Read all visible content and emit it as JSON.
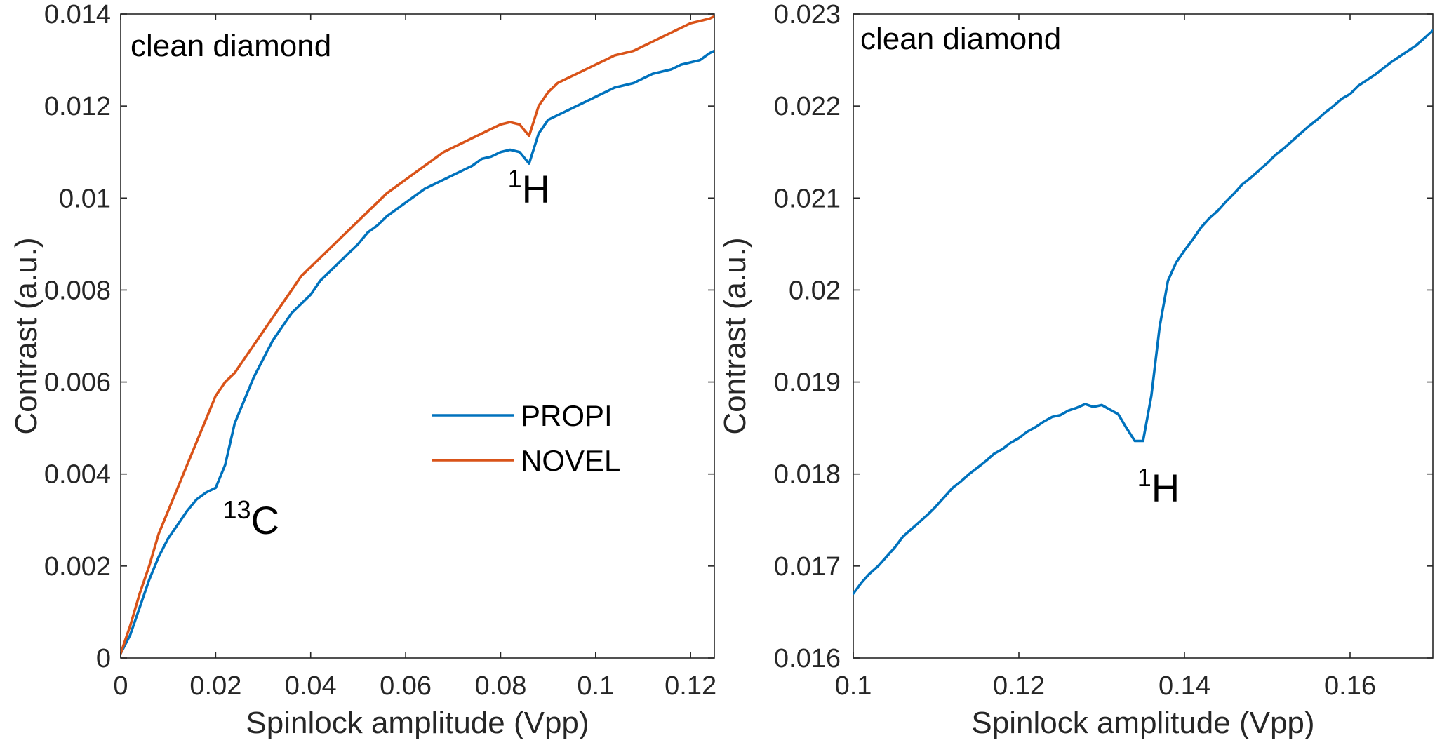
{
  "chart_data": [
    {
      "type": "line",
      "title": "clean diamond",
      "xlabel": "Spinlock amplitude (Vpp)",
      "ylabel": "Contrast (a.u.)",
      "xlim": [
        0,
        0.125
      ],
      "ylim": [
        0,
        0.014
      ],
      "xticks": [
        0,
        0.02,
        0.04,
        0.06,
        0.08,
        0.1,
        0.12
      ],
      "xtick_labels": [
        "0",
        "0.02",
        "0.04",
        "0.06",
        "0.08",
        "0.1",
        "0.12"
      ],
      "yticks": [
        0,
        0.002,
        0.004,
        0.006,
        0.008,
        0.01,
        0.012,
        0.014
      ],
      "ytick_labels": [
        "0",
        "0.002",
        "0.004",
        "0.006",
        "0.008",
        "0.01",
        "0.012",
        "0.014"
      ],
      "grid": false,
      "legend_position": "center-right",
      "series": [
        {
          "name": "PROPI",
          "color": "#0072BD",
          "x": [
            0,
            0.002,
            0.004,
            0.006,
            0.008,
            0.01,
            0.012,
            0.014,
            0.016,
            0.018,
            0.02,
            0.022,
            0.024,
            0.026,
            0.028,
            0.03,
            0.032,
            0.034,
            0.036,
            0.038,
            0.04,
            0.042,
            0.044,
            0.046,
            0.048,
            0.05,
            0.052,
            0.054,
            0.056,
            0.058,
            0.06,
            0.062,
            0.064,
            0.066,
            0.068,
            0.07,
            0.072,
            0.074,
            0.076,
            0.078,
            0.08,
            0.082,
            0.084,
            0.086,
            0.088,
            0.09,
            0.092,
            0.094,
            0.096,
            0.098,
            0.1,
            0.102,
            0.104,
            0.106,
            0.108,
            0.11,
            0.112,
            0.114,
            0.116,
            0.118,
            0.12,
            0.122,
            0.124,
            0.125
          ],
          "y": [
            0.0001,
            0.0005,
            0.0011,
            0.0017,
            0.0022,
            0.0026,
            0.0029,
            0.0032,
            0.00345,
            0.0036,
            0.0037,
            0.0042,
            0.0051,
            0.0056,
            0.0061,
            0.0065,
            0.0069,
            0.0072,
            0.0075,
            0.0077,
            0.0079,
            0.0082,
            0.0084,
            0.0086,
            0.0088,
            0.009,
            0.00925,
            0.0094,
            0.0096,
            0.00975,
            0.0099,
            0.01005,
            0.0102,
            0.0103,
            0.0104,
            0.0105,
            0.0106,
            0.0107,
            0.01085,
            0.0109,
            0.011,
            0.01105,
            0.011,
            0.01075,
            0.0114,
            0.0117,
            0.0118,
            0.0119,
            0.012,
            0.0121,
            0.0122,
            0.0123,
            0.0124,
            0.01245,
            0.0125,
            0.0126,
            0.0127,
            0.01275,
            0.0128,
            0.0129,
            0.01295,
            0.013,
            0.01315,
            0.0132
          ]
        },
        {
          "name": "NOVEL",
          "color": "#D95319",
          "x": [
            0,
            0.002,
            0.004,
            0.006,
            0.008,
            0.01,
            0.012,
            0.014,
            0.016,
            0.018,
            0.02,
            0.022,
            0.024,
            0.026,
            0.028,
            0.03,
            0.032,
            0.034,
            0.036,
            0.038,
            0.04,
            0.042,
            0.044,
            0.046,
            0.048,
            0.05,
            0.052,
            0.054,
            0.056,
            0.058,
            0.06,
            0.062,
            0.064,
            0.066,
            0.068,
            0.07,
            0.072,
            0.074,
            0.076,
            0.078,
            0.08,
            0.082,
            0.084,
            0.086,
            0.088,
            0.09,
            0.092,
            0.094,
            0.096,
            0.098,
            0.1,
            0.102,
            0.104,
            0.106,
            0.108,
            0.11,
            0.112,
            0.114,
            0.116,
            0.118,
            0.12,
            0.122,
            0.124,
            0.125
          ],
          "y": [
            0.0001,
            0.0007,
            0.0014,
            0.002,
            0.0027,
            0.0032,
            0.0037,
            0.0042,
            0.0047,
            0.0052,
            0.0057,
            0.006,
            0.0062,
            0.0065,
            0.0068,
            0.0071,
            0.0074,
            0.0077,
            0.008,
            0.0083,
            0.0085,
            0.0087,
            0.0089,
            0.0091,
            0.0093,
            0.0095,
            0.0097,
            0.0099,
            0.0101,
            0.01025,
            0.0104,
            0.01055,
            0.0107,
            0.01085,
            0.011,
            0.0111,
            0.0112,
            0.0113,
            0.0114,
            0.0115,
            0.0116,
            0.01165,
            0.0116,
            0.01135,
            0.012,
            0.0123,
            0.0125,
            0.0126,
            0.0127,
            0.0128,
            0.0129,
            0.013,
            0.0131,
            0.01315,
            0.0132,
            0.0133,
            0.0134,
            0.0135,
            0.0136,
            0.0137,
            0.0138,
            0.01385,
            0.0139,
            0.01395
          ]
        }
      ],
      "annotations": [
        {
          "sup": "13",
          "text": "C",
          "x": 0.0215,
          "y": 0.0027
        },
        {
          "sup": "1",
          "text": "H",
          "x": 0.0815,
          "y": 0.0099
        }
      ]
    },
    {
      "type": "line",
      "title": "clean diamond",
      "xlabel": "Spinlock amplitude (Vpp)",
      "ylabel": "Contrast (a.u.)",
      "xlim": [
        0.1,
        0.17
      ],
      "ylim": [
        0.016,
        0.023
      ],
      "xticks": [
        0.1,
        0.12,
        0.14,
        0.16
      ],
      "xtick_labels": [
        "0.1",
        "0.12",
        "0.14",
        "0.16"
      ],
      "yticks": [
        0.016,
        0.017,
        0.018,
        0.019,
        0.02,
        0.021,
        0.022,
        0.023
      ],
      "ytick_labels": [
        "0.016",
        "0.017",
        "0.018",
        "0.019",
        "0.02",
        "0.021",
        "0.022",
        "0.023"
      ],
      "grid": false,
      "series": [
        {
          "color": "#0072BD",
          "x": [
            0.1,
            0.101,
            0.102,
            0.103,
            0.104,
            0.105,
            0.106,
            0.107,
            0.108,
            0.109,
            0.11,
            0.111,
            0.112,
            0.113,
            0.114,
            0.115,
            0.116,
            0.117,
            0.118,
            0.119,
            0.12,
            0.121,
            0.122,
            0.123,
            0.124,
            0.125,
            0.126,
            0.127,
            0.128,
            0.129,
            0.13,
            0.131,
            0.132,
            0.133,
            0.134,
            0.135,
            0.136,
            0.137,
            0.138,
            0.139,
            0.14,
            0.141,
            0.142,
            0.143,
            0.144,
            0.145,
            0.146,
            0.147,
            0.148,
            0.149,
            0.15,
            0.151,
            0.152,
            0.153,
            0.154,
            0.155,
            0.156,
            0.157,
            0.158,
            0.159,
            0.16,
            0.161,
            0.162,
            0.163,
            0.164,
            0.165,
            0.166,
            0.167,
            0.168,
            0.169,
            0.17
          ],
          "y": [
            0.0167,
            0.01682,
            0.01692,
            0.017,
            0.0171,
            0.0172,
            0.01732,
            0.0174,
            0.01748,
            0.01756,
            0.01765,
            0.01775,
            0.01785,
            0.01792,
            0.018,
            0.01807,
            0.01814,
            0.01822,
            0.01827,
            0.01834,
            0.01839,
            0.01846,
            0.01851,
            0.01857,
            0.01862,
            0.01864,
            0.01869,
            0.01872,
            0.01876,
            0.01873,
            0.01875,
            0.0187,
            0.01865,
            0.0185,
            0.01836,
            0.01836,
            0.01885,
            0.0196,
            0.0201,
            0.0203,
            0.02043,
            0.02055,
            0.02068,
            0.02078,
            0.02086,
            0.02096,
            0.02105,
            0.02115,
            0.02122,
            0.0213,
            0.02138,
            0.02147,
            0.02154,
            0.02162,
            0.0217,
            0.02178,
            0.02185,
            0.02193,
            0.022,
            0.02208,
            0.02213,
            0.02222,
            0.02228,
            0.02234,
            0.02241,
            0.02248,
            0.02254,
            0.0226,
            0.02266,
            0.02274,
            0.02282
          ]
        }
      ],
      "annotations": [
        {
          "sup": "1",
          "text": "H",
          "x": 0.1343,
          "y": 0.0177
        }
      ]
    }
  ]
}
